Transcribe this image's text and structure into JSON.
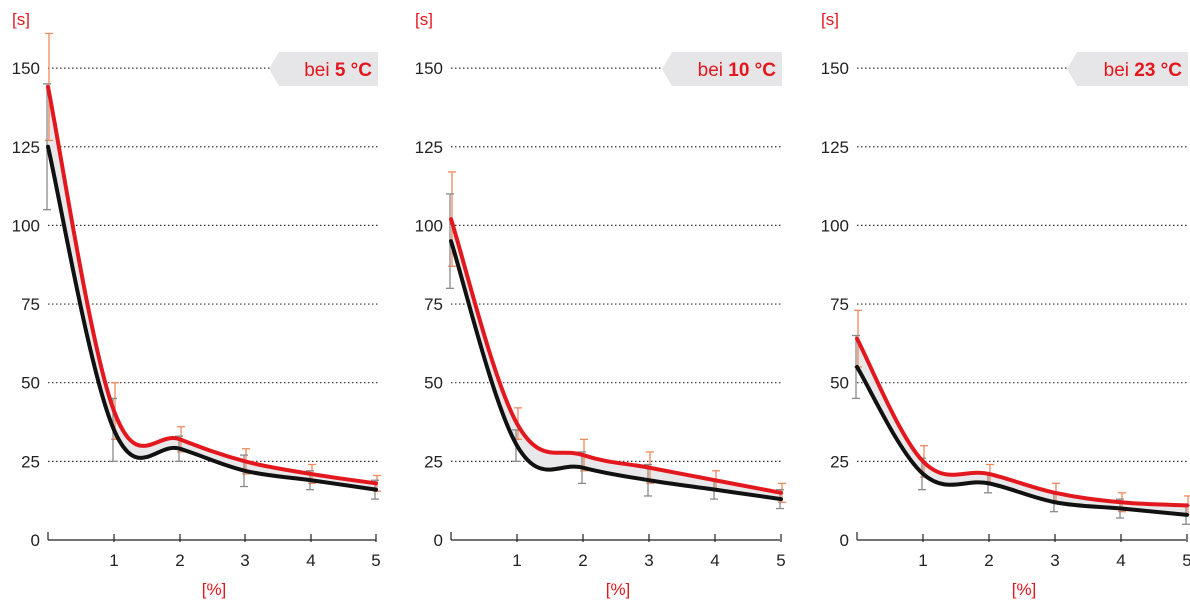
{
  "colors": {
    "red": "#e3181f",
    "black": "#111111",
    "errbar_red": "#ef8a5e",
    "errbar_black": "#8a8a8a",
    "band": "#e8e8ea",
    "label_box": "#e6e6e8",
    "grid": "#333333"
  },
  "chart_data": [
    {
      "type": "line",
      "title_prefix": "bei",
      "title_value": "5 °C",
      "ylabel": "[s]",
      "xlabel": "[%]",
      "ylim": [
        0,
        150
      ],
      "y_ticks": [
        "0",
        "25",
        "50",
        "75",
        "100",
        "125",
        "150"
      ],
      "x_ticks": [
        "1",
        "2",
        "3",
        "4",
        "5"
      ],
      "grid": true,
      "series": [
        {
          "color": "red",
          "x": [
            0,
            1,
            2,
            3,
            4,
            5
          ],
          "values": [
            144,
            41,
            32,
            25,
            21,
            18
          ],
          "err": [
            17,
            9,
            4,
            4,
            3,
            2.5
          ]
        },
        {
          "color": "black",
          "x": [
            0,
            1,
            2,
            3,
            4,
            5
          ],
          "values": [
            125,
            35,
            29,
            22,
            19,
            16
          ],
          "err": [
            20,
            10,
            4,
            5,
            3,
            3
          ]
        }
      ]
    },
    {
      "type": "line",
      "title_prefix": "bei",
      "title_value": "10 °C",
      "ylabel": "[s]",
      "xlabel": "[%]",
      "ylim": [
        0,
        150
      ],
      "y_ticks": [
        "0",
        "25",
        "50",
        "75",
        "100",
        "125",
        "150"
      ],
      "x_ticks": [
        "1",
        "2",
        "3",
        "4",
        "5"
      ],
      "grid": true,
      "series": [
        {
          "color": "red",
          "x": [
            0,
            1,
            2,
            3,
            4,
            5
          ],
          "values": [
            102,
            37,
            27,
            23,
            19,
            15
          ],
          "err": [
            15,
            5,
            5,
            5,
            3,
            3
          ]
        },
        {
          "color": "black",
          "x": [
            0,
            1,
            2,
            3,
            4,
            5
          ],
          "values": [
            95,
            30,
            23,
            19,
            16,
            13
          ],
          "err": [
            15,
            5,
            5,
            5,
            3,
            3
          ]
        }
      ]
    },
    {
      "type": "line",
      "title_prefix": "bei",
      "title_value": "23 °C",
      "ylabel": "[s]",
      "xlabel": "[%]",
      "ylim": [
        0,
        150
      ],
      "y_ticks": [
        "0",
        "25",
        "50",
        "75",
        "100",
        "125",
        "150"
      ],
      "x_ticks": [
        "1",
        "2",
        "3",
        "4",
        "5"
      ],
      "grid": true,
      "series": [
        {
          "color": "red",
          "x": [
            0,
            1,
            2,
            3,
            4,
            5
          ],
          "values": [
            64,
            25,
            21,
            15,
            12,
            11
          ],
          "err": [
            9,
            5,
            3,
            3,
            3,
            3
          ]
        },
        {
          "color": "black",
          "x": [
            0,
            1,
            2,
            3,
            4,
            5
          ],
          "values": [
            55,
            21,
            18,
            12,
            10,
            8
          ],
          "err": [
            10,
            5,
            3,
            3,
            3,
            3
          ]
        }
      ]
    }
  ]
}
